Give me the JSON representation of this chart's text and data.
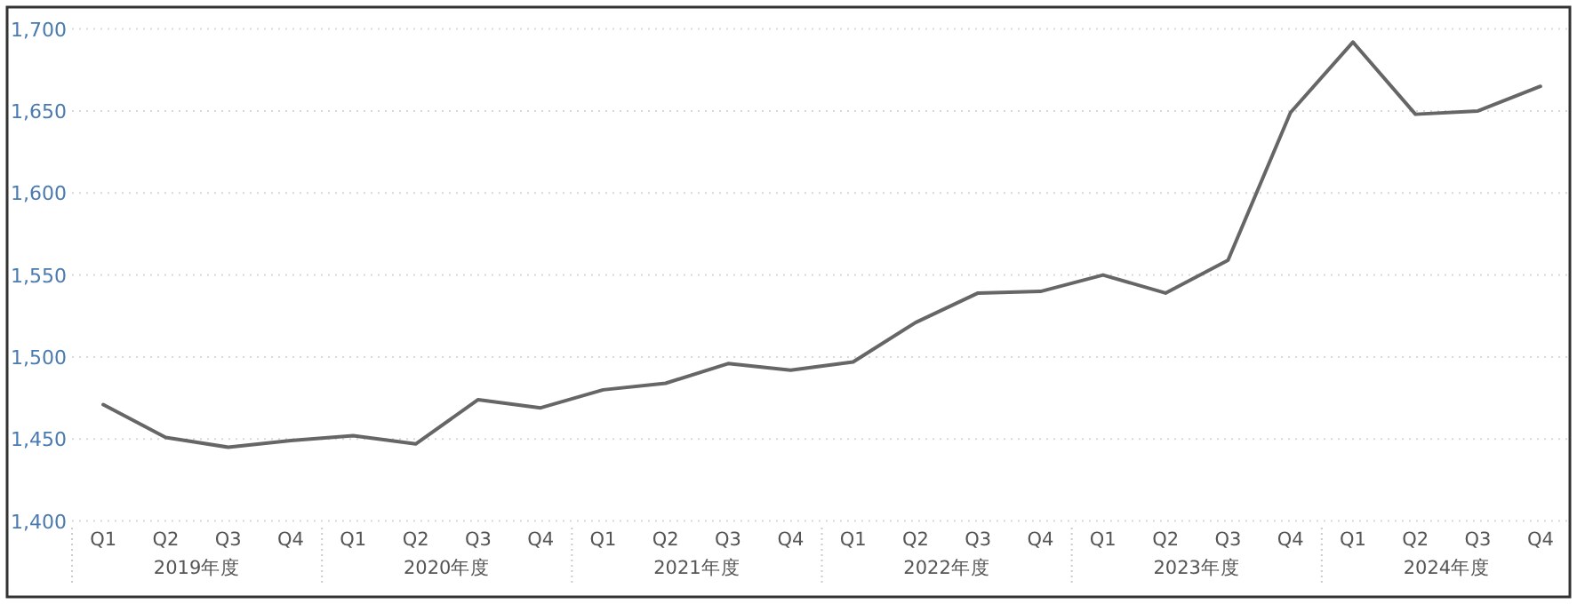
{
  "chart_data": {
    "type": "line",
    "categories": [
      "Q1",
      "Q2",
      "Q3",
      "Q4",
      "Q1",
      "Q2",
      "Q3",
      "Q4",
      "Q1",
      "Q2",
      "Q3",
      "Q4",
      "Q1",
      "Q2",
      "Q3",
      "Q4",
      "Q1",
      "Q2",
      "Q3",
      "Q4",
      "Q1",
      "Q2",
      "Q3",
      "Q4"
    ],
    "series": [
      {
        "color": "#666666",
        "values": [
          1471,
          1451,
          1445,
          1449,
          1452,
          1447,
          1474,
          1469,
          1480,
          1484,
          1496,
          1492,
          1497,
          1521,
          1539,
          1540,
          1550,
          1539,
          1559,
          1649,
          1692,
          1648,
          1650,
          1665
        ]
      }
    ],
    "annotations": [
      "2019年度",
      "2020年度",
      "2021年度",
      "2022年度",
      "2023年度",
      "2024年度"
    ],
    "ylim": [
      1400,
      1700
    ],
    "yticks": [
      {
        "value": 1400,
        "label": "1,400"
      },
      {
        "value": 1450,
        "label": "1,450"
      },
      {
        "value": 1500,
        "label": "1,500"
      },
      {
        "value": 1550,
        "label": "1,550"
      },
      {
        "value": 1600,
        "label": "1,600"
      },
      {
        "value": 1650,
        "label": "1,650"
      },
      {
        "value": 1700,
        "label": "1,700"
      }
    ],
    "grid": "y"
  }
}
